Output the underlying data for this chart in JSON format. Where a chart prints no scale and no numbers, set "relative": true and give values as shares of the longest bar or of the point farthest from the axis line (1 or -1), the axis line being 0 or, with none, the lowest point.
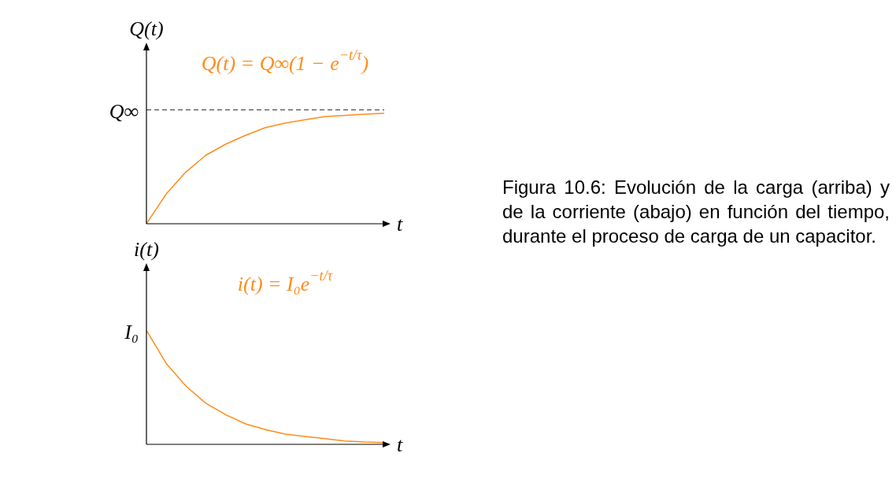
{
  "chart_data": [
    {
      "type": "line",
      "relative": true,
      "xlabel": "t",
      "ylabel": "Q(t)",
      "categories": [
        null,
        null,
        null,
        null,
        null,
        null,
        null,
        null,
        null,
        null,
        null,
        null,
        null
      ],
      "series": [
        {
          "color": "#ff8c1a",
          "values": [
            0,
            0.27,
            0.47,
            0.62,
            0.72,
            0.8,
            0.87,
            0.91,
            0.94,
            0.97,
            0.98,
            0.99,
            1
          ]
        }
      ],
      "ref_lines": [
        {
          "axis": "y",
          "value": 1.03,
          "label": "Q∞",
          "color": "#333333",
          "line_style": "dashed"
        }
      ],
      "annotations": [
        "Q(t) = Q∞(1 − e$^{−t/τ}$)",
        "Figura 10.6: Evolución de la carga (arriba) y de la corriente (abajo) en función del tiempo, durante el proceso de carga de un capacitor."
      ],
      "legend": false,
      "marker": "none",
      "line_style": "solid"
    },
    {
      "type": "line",
      "relative": true,
      "xlabel": "t",
      "ylabel": "i(t)",
      "categories": [
        null,
        null,
        null,
        null,
        null,
        null,
        null,
        null,
        null,
        null,
        null,
        null,
        null
      ],
      "series": [
        {
          "color": "#ff8c1a",
          "values": [
            1,
            0.71,
            0.51,
            0.36,
            0.26,
            0.18,
            0.13,
            0.09,
            0.07,
            0.05,
            0.03,
            0.02,
            0.015
          ]
        }
      ],
      "annotations": [
        "i(t) = I₀e$^{−t/τ}$",
        "I₀"
      ],
      "legend": false,
      "marker": "none",
      "line_style": "solid"
    }
  ]
}
